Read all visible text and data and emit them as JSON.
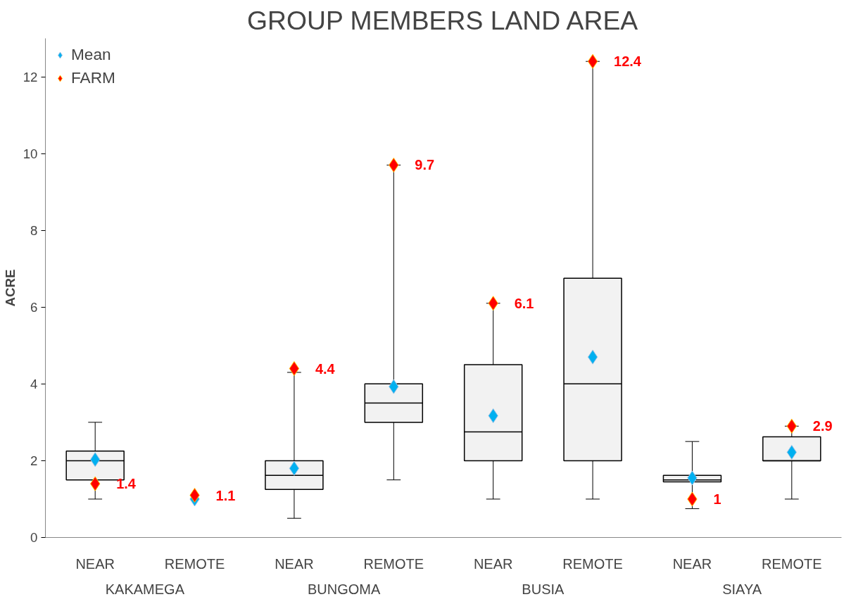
{
  "chart_data": {
    "type": "box",
    "title": "GROUP MEMBERS LAND AREA",
    "ylabel": "ACRE",
    "categories": [
      "NEAR",
      "REMOTE",
      "NEAR",
      "REMOTE",
      "NEAR",
      "REMOTE",
      "NEAR",
      "REMOTE"
    ],
    "annotations": [
      "KAKAMEGA",
      "BUNGOMA",
      "BUSIA",
      "SIAYA"
    ],
    "boxes": [
      {
        "low": 1,
        "q1": 1.5,
        "median": 2,
        "q3": 2.25,
        "high": 3
      },
      null,
      {
        "low": 0.5,
        "q1": 1.25,
        "median": 1.62,
        "q3": 2,
        "high": 4.3
      },
      {
        "low": 1.5,
        "q1": 3,
        "median": 3.5,
        "q3": 4,
        "high": 9.7
      },
      {
        "low": 1,
        "q1": 2,
        "median": 2.75,
        "q3": 4.5,
        "high": 6.1
      },
      {
        "low": 1,
        "q1": 2,
        "median": 4,
        "q3": 6.75,
        "high": 12.4
      },
      {
        "low": 0.75,
        "q1": 1.45,
        "median": 1.5,
        "q3": 1.62,
        "high": 2.5
      },
      {
        "low": 1,
        "q1": 2,
        "median": 2,
        "q3": 2.62,
        "high": 2.9
      }
    ],
    "series": [
      {
        "name": "Mean",
        "type": "scatter",
        "marker": "diamond",
        "color": "#00b0f0",
        "values": [
          2.03,
          1.0,
          1.8,
          3.93,
          3.17,
          4.7,
          1.55,
          2.22
        ]
      },
      {
        "name": "FARM",
        "type": "scatter",
        "marker": "diamond",
        "color": "#ff0000",
        "values": [
          1.4,
          1.1,
          4.4,
          9.7,
          6.1,
          12.4,
          1,
          2.9
        ],
        "value_labels": [
          "1.4",
          "1.1",
          "4.4",
          "9.7",
          "6.1",
          "12.4",
          "1",
          "2.9"
        ]
      }
    ],
    "color": "#f2f2f2",
    "ylim": [
      0,
      13
    ],
    "yticks": [
      0,
      2,
      4,
      6,
      8,
      10,
      12
    ],
    "grid": false,
    "legend": "top left"
  }
}
